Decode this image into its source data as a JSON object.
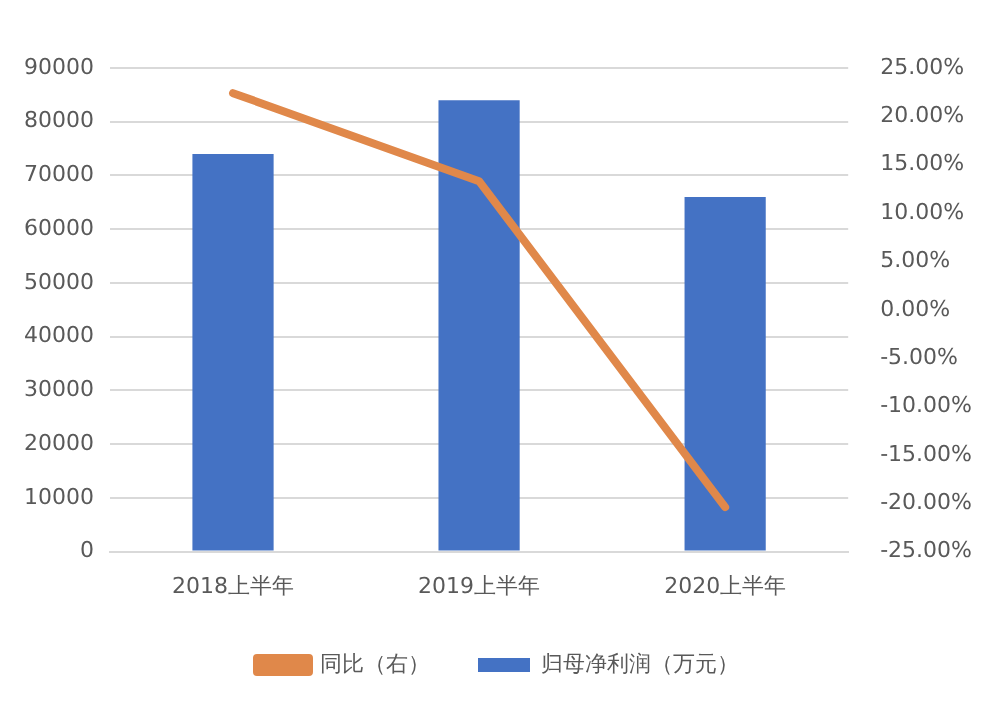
{
  "chart_data": {
    "type": "bar",
    "categories": [
      "2018上半年",
      "2019上半年",
      "2020上半年"
    ],
    "series": [
      {
        "name": "归母净利润（万元）",
        "color": "#4472c4",
        "values": [
          74000,
          84000,
          66000
        ]
      },
      {
        "name": "同比（右）",
        "type": "line",
        "axis": "y2",
        "color": "#e0884a",
        "values": [
          22.4,
          13.3,
          -20.4
        ]
      }
    ],
    "ylim": [
      0,
      90000
    ],
    "yticks": [
      0,
      10000,
      20000,
      30000,
      40000,
      50000,
      60000,
      70000,
      80000,
      90000
    ],
    "y2lim": [
      -25,
      25
    ],
    "y2ticks": [
      {
        "value": -25,
        "label": "-25.00%"
      },
      {
        "value": -20,
        "label": "-20.00%"
      },
      {
        "value": -15,
        "label": "-15.00%"
      },
      {
        "value": -10,
        "label": "-10.00%"
      },
      {
        "value": -5,
        "label": "-5.00%"
      },
      {
        "value": 0,
        "label": "0.00%"
      },
      {
        "value": 5,
        "label": "5.00%"
      },
      {
        "value": 10,
        "label": "10.00%"
      },
      {
        "value": 15,
        "label": "15.00%"
      },
      {
        "value": 20,
        "label": "20.00%"
      },
      {
        "value": 25,
        "label": "25.00%"
      }
    ],
    "grid": "y",
    "legend": "bottom",
    "marker": "none"
  }
}
